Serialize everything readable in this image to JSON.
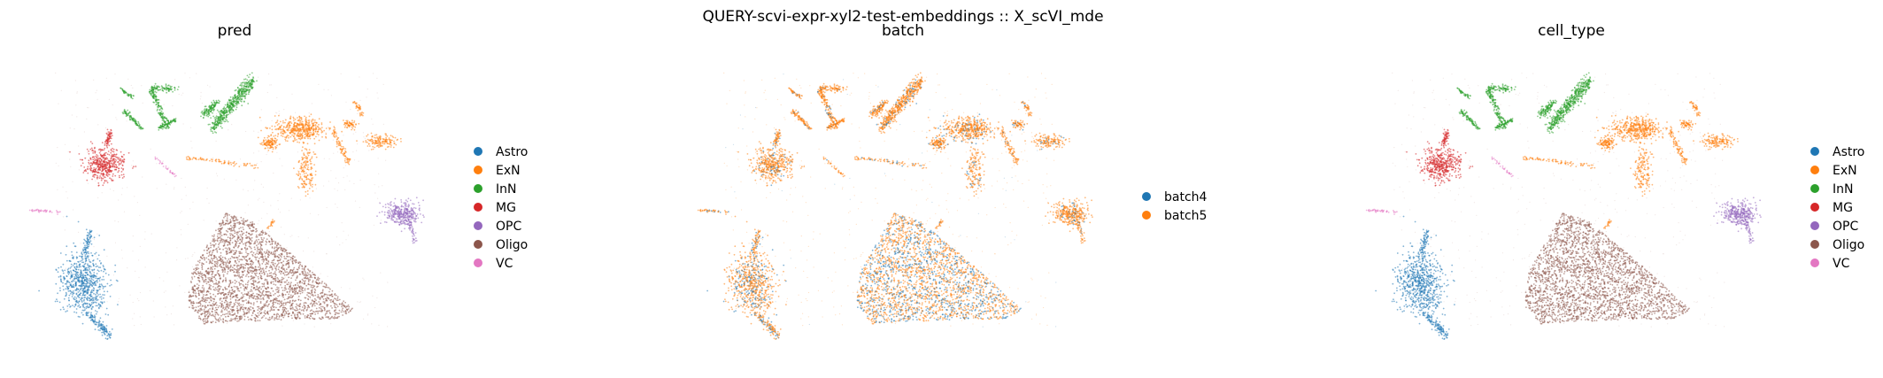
{
  "figure": {
    "title": "QUERY-scvi-expr-xyl2-test-embeddings :: X_scVI_mde"
  },
  "chart_data": [
    {
      "type": "scatter",
      "title": "pred",
      "xlabel": "",
      "ylabel": "",
      "grid": false,
      "axes_visible": false,
      "legend_position": "right",
      "categories": [
        "Astro",
        "ExN",
        "InN",
        "MG",
        "OPC",
        "Oligo",
        "VC"
      ],
      "colors": [
        "#1f77b4",
        "#ff7f0e",
        "#2ca02c",
        "#d62728",
        "#9467bd",
        "#8c564b",
        "#e377c2"
      ]
    },
    {
      "type": "scatter",
      "title": "batch",
      "xlabel": "",
      "ylabel": "",
      "grid": false,
      "axes_visible": false,
      "legend_position": "right",
      "categories": [
        "batch4",
        "batch5"
      ],
      "colors": [
        "#1f77b4",
        "#ff7f0e"
      ]
    },
    {
      "type": "scatter",
      "title": "cell_type",
      "xlabel": "",
      "ylabel": "",
      "grid": false,
      "axes_visible": false,
      "legend_position": "right",
      "categories": [
        "Astro",
        "ExN",
        "InN",
        "MG",
        "OPC",
        "Oligo",
        "VC"
      ],
      "colors": [
        "#1f77b4",
        "#ff7f0e",
        "#2ca02c",
        "#d62728",
        "#9467bd",
        "#8c564b",
        "#e377c2"
      ]
    }
  ]
}
